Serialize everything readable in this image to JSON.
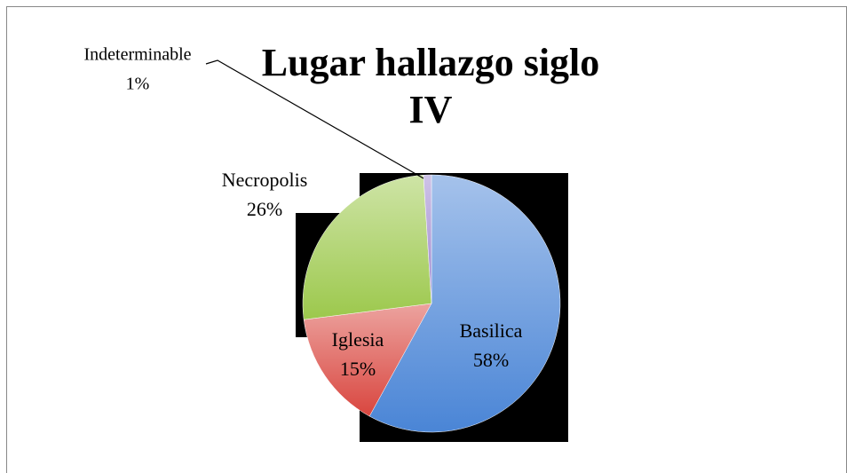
{
  "chart_data": {
    "type": "pie",
    "title": "Lugar hallazgo siglo IV",
    "categories": [
      "Basilica",
      "Iglesia",
      "Necropolis",
      "Indeterminable"
    ],
    "values": [
      58,
      15,
      26,
      1
    ],
    "value_labels": [
      "58%",
      "15%",
      "26%",
      "1%"
    ],
    "colors": [
      "#4a85d6",
      "#d9463f",
      "#9cc84c",
      "#9d86cf"
    ]
  }
}
